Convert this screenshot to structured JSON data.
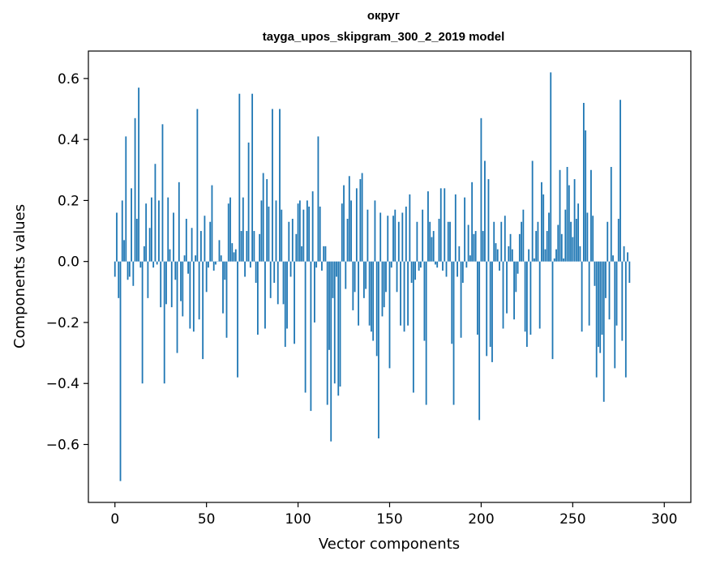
{
  "chart_data": {
    "type": "bar",
    "title": "округ",
    "subtitle": "tayga_upos_skipgram_300_2_2019 model",
    "xlabel": "Vector components",
    "ylabel": "Components values",
    "xlim": [
      -14.5,
      314.5
    ],
    "ylim": [
      -0.79,
      0.69
    ],
    "xticks": [
      0,
      50,
      100,
      150,
      200,
      250,
      300
    ],
    "yticks": [
      -0.6,
      -0.4,
      -0.2,
      0.0,
      0.2,
      0.4,
      0.6
    ],
    "ytick_labels": [
      "−0.6",
      "−0.4",
      "−0.2",
      "0.0",
      "0.2",
      "0.4",
      "0.6"
    ],
    "grid": false,
    "bar_color": "#1f77b4",
    "x_start": 0,
    "values": [
      -0.05,
      0.16,
      -0.12,
      -0.72,
      0.2,
      0.07,
      0.41,
      -0.06,
      -0.05,
      0.24,
      -0.08,
      0.47,
      0.14,
      0.57,
      -0.02,
      -0.4,
      0.05,
      0.19,
      -0.12,
      0.11,
      0.21,
      -0.02,
      0.32,
      -0.01,
      0.2,
      -0.15,
      0.45,
      -0.4,
      -0.14,
      0.21,
      0.04,
      -0.15,
      0.16,
      -0.06,
      -0.3,
      0.26,
      -0.13,
      -0.18,
      0.02,
      0.14,
      -0.04,
      -0.22,
      0.11,
      -0.23,
      0.02,
      0.5,
      -0.19,
      0.1,
      -0.32,
      0.15,
      -0.1,
      -0.02,
      0.13,
      0.25,
      -0.03,
      -0.01,
      0.0,
      0.07,
      0.02,
      -0.17,
      -0.06,
      -0.25,
      0.19,
      0.21,
      0.06,
      0.03,
      0.04,
      -0.38,
      0.55,
      0.1,
      0.21,
      -0.05,
      0.1,
      0.39,
      -0.02,
      0.55,
      0.1,
      -0.07,
      -0.24,
      0.09,
      0.2,
      0.29,
      -0.22,
      0.27,
      0.18,
      -0.12,
      0.5,
      -0.07,
      0.2,
      -0.14,
      0.5,
      0.17,
      -0.14,
      -0.28,
      -0.22,
      0.13,
      -0.05,
      0.14,
      -0.27,
      0.09,
      0.19,
      0.2,
      0.05,
      0.17,
      -0.43,
      0.2,
      0.18,
      -0.49,
      0.23,
      -0.2,
      -0.02,
      0.41,
      0.18,
      -0.03,
      0.05,
      0.05,
      -0.47,
      -0.29,
      -0.59,
      -0.12,
      -0.4,
      -0.05,
      -0.44,
      -0.41,
      0.19,
      0.25,
      -0.09,
      0.14,
      0.28,
      0.2,
      -0.16,
      -0.1,
      0.24,
      -0.21,
      0.27,
      0.29,
      -0.12,
      -0.09,
      0.17,
      -0.21,
      -0.23,
      -0.26,
      0.2,
      -0.31,
      -0.58,
      0.16,
      -0.18,
      -0.15,
      -0.1,
      0.15,
      -0.35,
      -0.02,
      0.15,
      0.17,
      -0.1,
      0.13,
      -0.21,
      0.16,
      -0.23,
      0.18,
      -0.21,
      0.22,
      -0.07,
      -0.43,
      -0.06,
      0.13,
      -0.03,
      -0.02,
      0.17,
      -0.26,
      -0.47,
      0.23,
      0.13,
      0.08,
      0.1,
      -0.01,
      -0.02,
      0.14,
      0.24,
      -0.03,
      0.24,
      -0.05,
      0.13,
      0.13,
      -0.27,
      -0.47,
      0.22,
      -0.05,
      0.05,
      -0.25,
      -0.07,
      0.21,
      -0.02,
      0.12,
      0.02,
      0.26,
      0.09,
      0.1,
      -0.24,
      -0.52,
      0.47,
      0.1,
      0.33,
      -0.31,
      0.27,
      -0.28,
      -0.33,
      0.13,
      0.06,
      0.04,
      -0.03,
      0.13,
      -0.22,
      0.15,
      -0.17,
      0.05,
      0.09,
      0.04,
      -0.19,
      -0.1,
      -0.04,
      0.09,
      0.13,
      0.17,
      -0.23,
      -0.28,
      0.04,
      -0.24,
      0.33,
      0.01,
      0.1,
      0.13,
      -0.22,
      0.26,
      0.22,
      0.04,
      0.1,
      0.16,
      0.62,
      -0.32,
      0.01,
      0.04,
      0.12,
      0.3,
      0.09,
      0.01,
      0.17,
      0.31,
      0.25,
      0.13,
      0.08,
      0.27,
      0.14,
      0.19,
      0.05,
      -0.23,
      0.52,
      0.43,
      0.16,
      -0.21,
      0.3,
      0.15,
      -0.08,
      -0.38,
      -0.28,
      -0.3,
      -0.24,
      -0.46,
      -0.12,
      0.13,
      -0.19,
      0.31,
      0.02,
      -0.35,
      -0.21,
      0.14,
      0.53,
      -0.26,
      0.05,
      -0.38,
      0.03,
      -0.07
    ]
  }
}
